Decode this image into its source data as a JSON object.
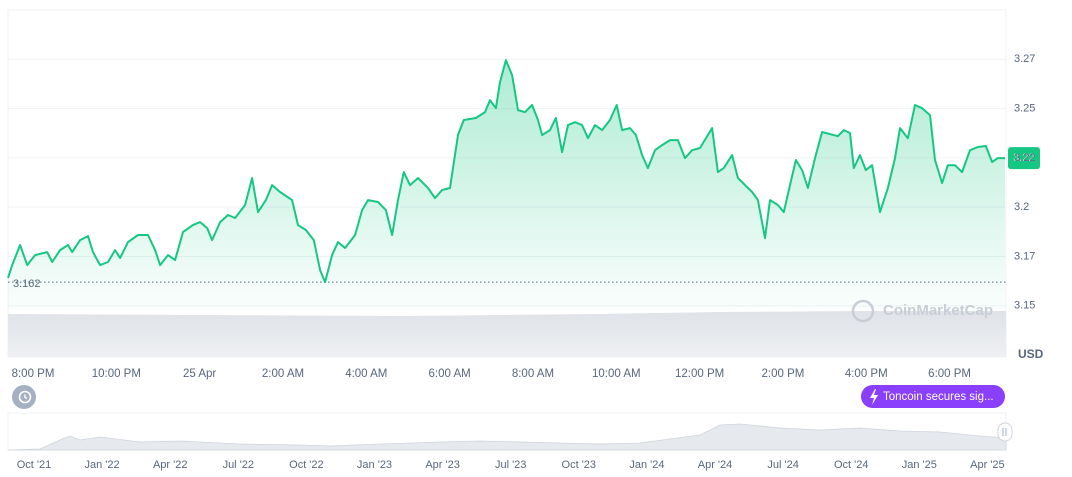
{
  "chart_data": {
    "type": "line",
    "color": "#16c784",
    "x": [
      19.4,
      19.5,
      19.69,
      19.86,
      20.05,
      20.34,
      20.46,
      20.65,
      20.84,
      20.94,
      21.13,
      21.32,
      21.44,
      21.61,
      21.8,
      21.97,
      22.09,
      22.28,
      22.52,
      22.76,
      22.93,
      23.05,
      23.24,
      23.41,
      23.6,
      23.84,
      24.01,
      24.18,
      24.3,
      24.49,
      24.68,
      24.85,
      25.09,
      25.26,
      25.4,
      25.59,
      25.74,
      25.93,
      26.22,
      26.36,
      26.55,
      26.74,
      26.89,
      27.01,
      27.18,
      27.32,
      27.49,
      27.73,
      27.9,
      28.04,
      28.28,
      28.47,
      28.62,
      28.76,
      28.9,
      29.05,
      29.24,
      29.48,
      29.65,
      29.82,
      30.01,
      30.2,
      30.34,
      30.63,
      30.85,
      30.97,
      31.11,
      31.21,
      31.35,
      31.5,
      31.64,
      31.81,
      31.98,
      32.12,
      32.22,
      32.41,
      32.55,
      32.7,
      32.84,
      33.01,
      33.18,
      33.32,
      33.49,
      33.66,
      33.85,
      34.01,
      34.14,
      34.33,
      34.47,
      34.62,
      34.76,
      34.93,
      35.1,
      35.29,
      35.48,
      35.65,
      35.82,
      36.01,
      36.3,
      36.44,
      36.58,
      36.78,
      36.92,
      37.26,
      37.4,
      37.57,
      37.69,
      37.88,
      38.02,
      38.17,
      38.31,
      38.46,
      38.6,
      38.77,
      38.94,
      39.32,
      39.46,
      39.61,
      39.7,
      39.85,
      39.99,
      40.14,
      40.33,
      40.52,
      40.69,
      40.81,
      41.0,
      41.17,
      41.34,
      41.53,
      41.65,
      41.82,
      41.96,
      42.13,
      42.3,
      42.49,
      42.68,
      42.87,
      43.02,
      43.16,
      43.33
    ],
    "values": [
      3.1641,
      3.1706,
      3.1808,
      3.1706,
      3.1757,
      3.1772,
      3.1722,
      3.1782,
      3.1808,
      3.1772,
      3.1833,
      3.1853,
      3.1772,
      3.1706,
      3.1722,
      3.1782,
      3.1742,
      3.1823,
      3.1859,
      3.1859,
      3.1782,
      3.1706,
      3.1757,
      3.1732,
      3.1874,
      3.1909,
      3.1924,
      3.1894,
      3.1833,
      3.1924,
      3.196,
      3.1945,
      3.2011,
      3.2148,
      3.1975,
      3.2036,
      3.2112,
      3.2077,
      3.2036,
      3.1909,
      3.1884,
      3.1833,
      3.1681,
      3.162,
      3.1757,
      3.1823,
      3.1793,
      3.1859,
      3.1985,
      3.2036,
      3.2026,
      3.1985,
      3.1859,
      3.2036,
      3.2178,
      3.2112,
      3.2148,
      3.2097,
      3.2046,
      3.2087,
      3.2097,
      3.2366,
      3.2442,
      3.2452,
      3.2482,
      3.2543,
      3.2502,
      3.2634,
      3.2746,
      3.267,
      3.2492,
      3.2482,
      3.2518,
      3.2442,
      3.2366,
      3.2391,
      3.2452,
      3.2279,
      3.2416,
      3.2431,
      3.2416,
      3.235,
      3.2416,
      3.2391,
      3.2442,
      3.2518,
      3.2391,
      3.2401,
      3.2366,
      3.2264,
      3.2198,
      3.2289,
      3.2315,
      3.234,
      3.234,
      3.2249,
      3.2289,
      3.23,
      3.2401,
      3.2178,
      3.2198,
      3.2264,
      3.2148,
      3.2077,
      3.2036,
      3.1843,
      3.2036,
      3.2011,
      3.1975,
      3.2112,
      3.2239,
      3.2188,
      3.2097,
      3.2249,
      3.2381,
      3.236,
      3.2391,
      3.2376,
      3.2198,
      3.2264,
      3.2188,
      3.2213,
      3.1975,
      3.2097,
      3.2249,
      3.2401,
      3.235,
      3.2518,
      3.2502,
      3.2467,
      3.2239,
      3.2122,
      3.2213,
      3.2213,
      3.2178,
      3.2289,
      3.2305,
      3.231,
      3.2229,
      3.2249,
      3.2249
    ],
    "xlim": [
      19.4,
      43.33
    ],
    "xticks": [
      {
        "value": 20,
        "label": "8:00 PM"
      },
      {
        "value": 22,
        "label": "10:00 PM"
      },
      {
        "value": 24,
        "label": "25 Apr"
      },
      {
        "value": 26,
        "label": "2:00 AM"
      },
      {
        "value": 28,
        "label": "4:00 AM"
      },
      {
        "value": 30,
        "label": "6:00 AM"
      },
      {
        "value": 32,
        "label": "8:00 AM"
      },
      {
        "value": 34,
        "label": "10:00 AM"
      },
      {
        "value": 36,
        "label": "12:00 PM"
      },
      {
        "value": 38,
        "label": "2:00 PM"
      },
      {
        "value": 40,
        "label": "4:00 PM"
      },
      {
        "value": 42,
        "label": "6:00 PM"
      }
    ],
    "ylim": [
      3.124,
      3.3
    ],
    "yticks": [
      3.15,
      {
        "value": 3.175,
        "label": "3.17"
      },
      3.2,
      {
        "value": 3.225,
        "label": "3.22"
      },
      3.25,
      {
        "value": 3.275,
        "label": "3.27"
      }
    ],
    "grid": true,
    "open_price": 3.162,
    "price_label": "3.22",
    "currency": "USD",
    "watermark": "CoinMarketCap",
    "annotation": "Toncoin secures sig...",
    "navigator_labels": [
      "Oct '21",
      "Jan '22",
      "Apr '22",
      "Jul '22",
      "Oct '22",
      "Jan '23",
      "Apr '23",
      "Jul '23",
      "Oct '23",
      "Jan '24",
      "Apr '24",
      "Jul '24",
      "Oct '24",
      "Jan '25",
      "Apr '25"
    ]
  }
}
